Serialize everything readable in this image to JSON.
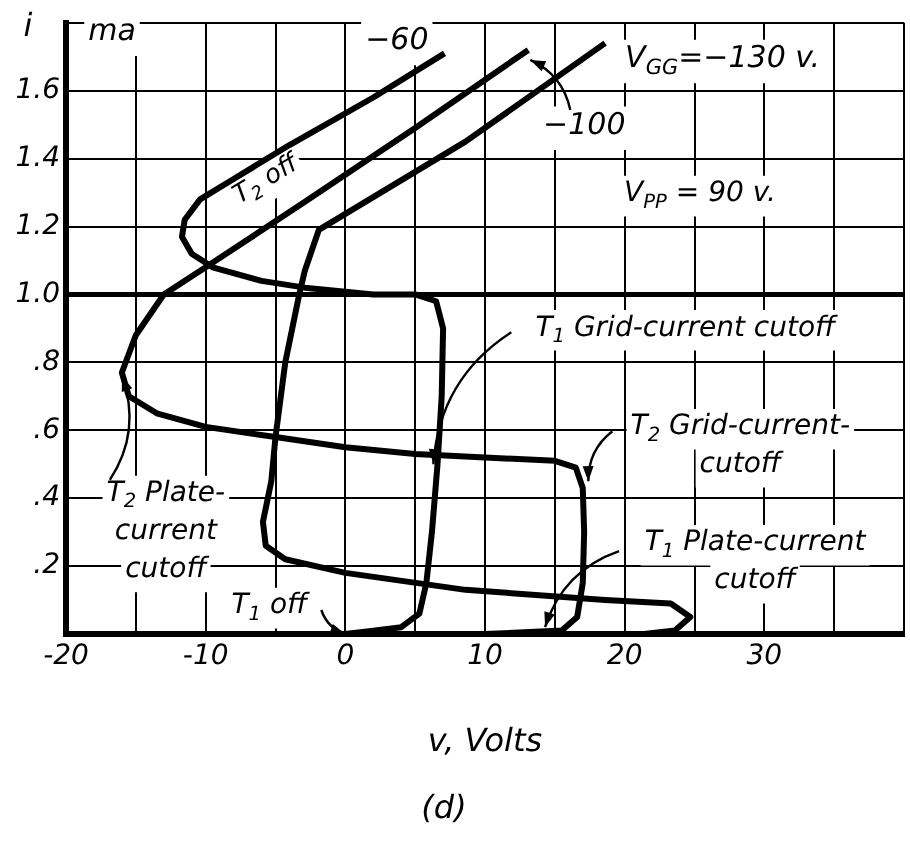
{
  "chart_data": {
    "type": "line",
    "xlabel": "v, Volts",
    "ylabel": "i",
    "xlim": [
      -20,
      40
    ],
    "xticks": [
      -20,
      {
        "value": -15,
        "label": null
      },
      -10,
      {
        "value": -5,
        "label": null
      },
      0,
      {
        "value": 5,
        "label": null
      },
      10,
      {
        "value": 15,
        "label": null
      },
      20,
      {
        "value": 25,
        "label": null
      },
      30,
      {
        "value": 35,
        "label": null
      },
      {
        "value": 40,
        "label": null
      }
    ],
    "ylim": [
      0,
      1.8
    ],
    "yticks": [
      {
        "value": 0,
        "label": null
      },
      {
        "value": 0.2,
        "label": ".2"
      },
      {
        "value": 0.4,
        "label": ".4"
      },
      {
        "value": 0.6,
        "label": ".6"
      },
      {
        "value": 0.8,
        "label": ".8"
      },
      {
        "value": 1,
        "label": "1.0"
      },
      {
        "value": 1.2,
        "label": "1.2"
      },
      {
        "value": 1.4,
        "label": "1.4"
      },
      {
        "value": 1.6,
        "label": "1.6"
      },
      {
        "value": 1.8,
        "label": null
      }
    ],
    "grid": true,
    "marker": "none",
    "line_style": "solid",
    "ref_lines": [
      {
        "axis": "y",
        "value": 1.0,
        "color": "#000000"
      }
    ],
    "series": [
      {
        "name": "−60",
        "color": "#000000",
        "x": [
          7.1,
          2,
          -4,
          -8,
          -10.4,
          -11.5,
          -11.7,
          -11,
          -9.5,
          -6,
          -2.9,
          2,
          5,
          6.5,
          7,
          6.9,
          6.6,
          6.2,
          5.8,
          5.3,
          4,
          2,
          0
        ],
        "values": [
          1.71,
          1.58,
          1.44,
          1.34,
          1.28,
          1.22,
          1.17,
          1.12,
          1.08,
          1.04,
          1.02,
          1.0,
          1.0,
          0.98,
          0.9,
          0.7,
          0.5,
          0.3,
          0.15,
          0.06,
          0.02,
          0.01,
          0
        ]
      },
      {
        "name": "−100",
        "color": "#000000",
        "x": [
          13.1,
          5,
          -3,
          -10,
          -13,
          -15,
          -16,
          -15.5,
          -13.5,
          -10,
          -5,
          0,
          5,
          10,
          15,
          16.5,
          17,
          17.1,
          17,
          16.6,
          15.5,
          10,
          0
        ],
        "values": [
          1.72,
          1.49,
          1.27,
          1.08,
          1.0,
          0.88,
          0.77,
          0.7,
          0.65,
          0.61,
          0.58,
          0.55,
          0.53,
          0.52,
          0.51,
          0.49,
          0.43,
          0.3,
          0.15,
          0.05,
          0.01,
          0,
          0
        ]
      },
      {
        "name": "V$_{GG}$=−130 v.",
        "color": "#000000",
        "x": [
          18.6,
          8.6,
          -1.9,
          -2.9,
          -3.3,
          -4.3,
          -5,
          -5.3,
          -5.9,
          -5.7,
          -4.3,
          0,
          8.6,
          18.6,
          23.3,
          24.7,
          23.6,
          21.4,
          0
        ],
        "values": [
          1.74,
          1.45,
          1.19,
          1.07,
          1.0,
          0.8,
          0.58,
          0.45,
          0.33,
          0.26,
          0.22,
          0.18,
          0.13,
          0.1,
          0.09,
          0.05,
          0.01,
          0,
          0
        ]
      }
    ],
    "annotations": [
      "ma",
      "V$_{PP}$ = 90 v.",
      "T$_{2}$ off",
      {
        "text": "T$_{1}$ Grid-current cutoff",
        "x": 6.3,
        "y": 0.5
      },
      {
        "text": "T$_{2}$ Grid-current-\ncutoff",
        "x": 17.4,
        "y": 0.45
      },
      {
        "text": "T$_{1}$ Plate-current\ncutoff",
        "x": 14.3,
        "y": 0.02
      },
      {
        "text": "T$_{2}$ Plate-\ncurrent\ncutoff",
        "x": -16,
        "y": 0.76
      },
      {
        "text": "T$_{1}$ off",
        "x": 0,
        "y": 0
      },
      "(d)"
    ]
  }
}
